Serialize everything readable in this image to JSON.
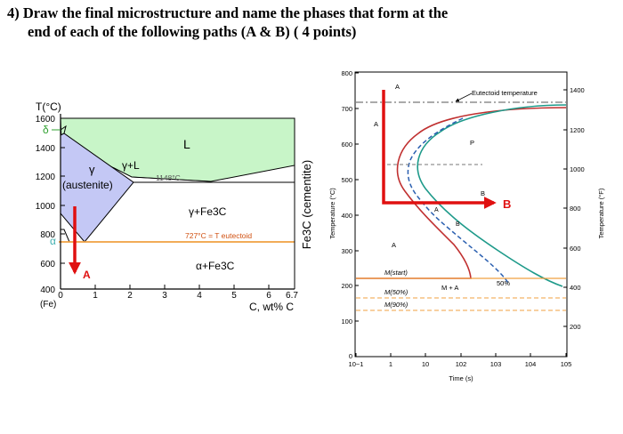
{
  "question": {
    "line1": "4)  Draw the final microstructure and name the phases that form at the",
    "line2": "end of each of the following paths (A & B)  ( 4 points)"
  },
  "phase_diagram": {
    "y_axis_title": "T(°C)",
    "y_ticks": [
      "1600",
      "1400",
      "1200",
      "1000",
      "800",
      "600",
      "400"
    ],
    "x_ticks": [
      "0",
      "1",
      "2",
      "3",
      "4",
      "5",
      "6",
      "6.7"
    ],
    "x_origin_label": "(Fe)",
    "x_axis_title": "C, wt% C",
    "right_axis_label": "Fe3C (cementite)",
    "regions": {
      "delta": "δ",
      "liquid": "L",
      "gamma_sym": "γ",
      "gamma_name": "(austenite)",
      "gamma_liquid": "γ+L",
      "gamma_fe3c": "γ+Fe3C",
      "alpha_fe3c": "α+Fe3C",
      "alpha": "α"
    },
    "eutectic_temp": "1148°C",
    "eutectoid_label": "727°C = T eutectoid",
    "path_label": "A",
    "colors": {
      "liquid_fill": "#c8f5c8",
      "austenite_fill": "#c4c8f5",
      "eutectoid_line": "#f0a040",
      "arrow": "#e01010",
      "delta_label": "#30a030",
      "alpha_label": "#40b0b0"
    }
  },
  "ttt_diagram": {
    "left_ticks": [
      "800",
      "700",
      "600",
      "500",
      "400",
      "300",
      "200",
      "100",
      "0"
    ],
    "right_ticks": [
      "1400",
      "1200",
      "1000",
      "800",
      "600",
      "400",
      "200"
    ],
    "left_axis_label": "Temperature (°C)",
    "right_axis_label": "Temperature (°F)",
    "x_ticks": [
      "10−1",
      "1",
      "10",
      "102",
      "103",
      "104",
      "105"
    ],
    "x_axis_label": "Time (s)",
    "eutectoid_label": "Eutectoid temperature",
    "labels": {
      "A_top": "A",
      "A_left": "A",
      "A_bottom": "A",
      "P": "P",
      "B": "B",
      "A_mid": "A",
      "B_mid": "B",
      "M_A": "M + A",
      "pct50": "50%",
      "m_start": "M(start)",
      "m_50": "M(50%)",
      "m_90": "M(90%)"
    },
    "path_label": "B",
    "colors": {
      "start_curve": "#c03030",
      "end_curve": "#1e9a8a",
      "bainite_dash": "#2a5fb0",
      "m_lines": "#f0a040",
      "path": "#e01010"
    }
  }
}
